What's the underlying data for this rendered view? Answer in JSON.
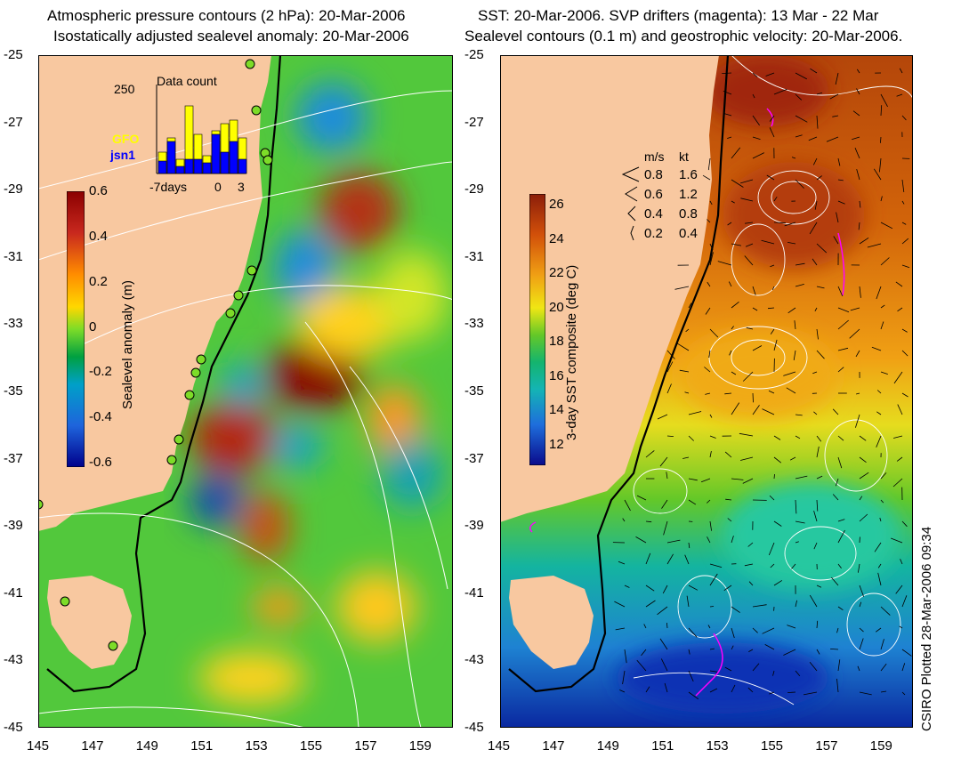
{
  "left_panel": {
    "title_line1": "Atmospheric pressure contours (2 hPa): 20-Mar-2006",
    "title_line2": "Isostatically adjusted sealevel anomaly: 20-Mar-2006",
    "colorbar": {
      "label": "Sealevel anomaly (m)",
      "ticks": [
        "0.6",
        "0.4",
        "0.2",
        "0",
        "-0.2",
        "-0.4",
        "-0.6"
      ],
      "colors": [
        "#8b0000",
        "#c8281e",
        "#ff8c00",
        "#ffd700",
        "#7ddc28",
        "#00a040",
        "#00a0c8",
        "#1e64dc",
        "#00008b"
      ]
    },
    "inset": {
      "title": "Data count",
      "ymax": "250",
      "label_gfo": "GFO",
      "label_jsn": "jsn1",
      "xlabel_left": "-7days",
      "xlabel_mid": "0",
      "xlabel_right": "3",
      "gfo_values": [
        60,
        100,
        40,
        190,
        110,
        50,
        120,
        140,
        150,
        100
      ],
      "jsn_values": [
        35,
        90,
        20,
        40,
        40,
        30,
        110,
        60,
        90,
        40
      ],
      "gfo_color": "#ffff00",
      "jsn_color": "#0000ff"
    }
  },
  "right_panel": {
    "title_line1": "SST: 20-Mar-2006. SVP drifters (magenta): 13 Mar - 22 Mar",
    "title_line2": "Sealevel contours (0.1 m) and geostrophic velocity: 20-Mar-2006.",
    "colorbar": {
      "label": "3-day SST composite (deg C)",
      "ticks": [
        "26",
        "24",
        "22",
        "20",
        "18",
        "16",
        "14",
        "12"
      ]
    },
    "speed_legend": {
      "header_ms": "m/s",
      "header_kt": "kt",
      "rows": [
        {
          "ms": "0.8",
          "kt": "1.6"
        },
        {
          "ms": "0.6",
          "kt": "1.2"
        },
        {
          "ms": "0.4",
          "kt": "0.8"
        },
        {
          "ms": "0.2",
          "kt": "0.4"
        }
      ]
    }
  },
  "axes": {
    "lat_ticks": [
      "-25",
      "-27",
      "-29",
      "-31",
      "-33",
      "-35",
      "-37",
      "-39",
      "-41",
      "-43",
      "-45"
    ],
    "lon_ticks": [
      "145",
      "147",
      "149",
      "151",
      "153",
      "155",
      "157",
      "159"
    ]
  },
  "credit": "CSIRO Plotted 28-Mar-2006 09:34",
  "colors": {
    "land": "#f8c8a0",
    "ocean_mid": "#40c840",
    "sst_warm": "#c85a14",
    "sst_cool": "#1e90c8",
    "drifter": "#ff00ff"
  }
}
